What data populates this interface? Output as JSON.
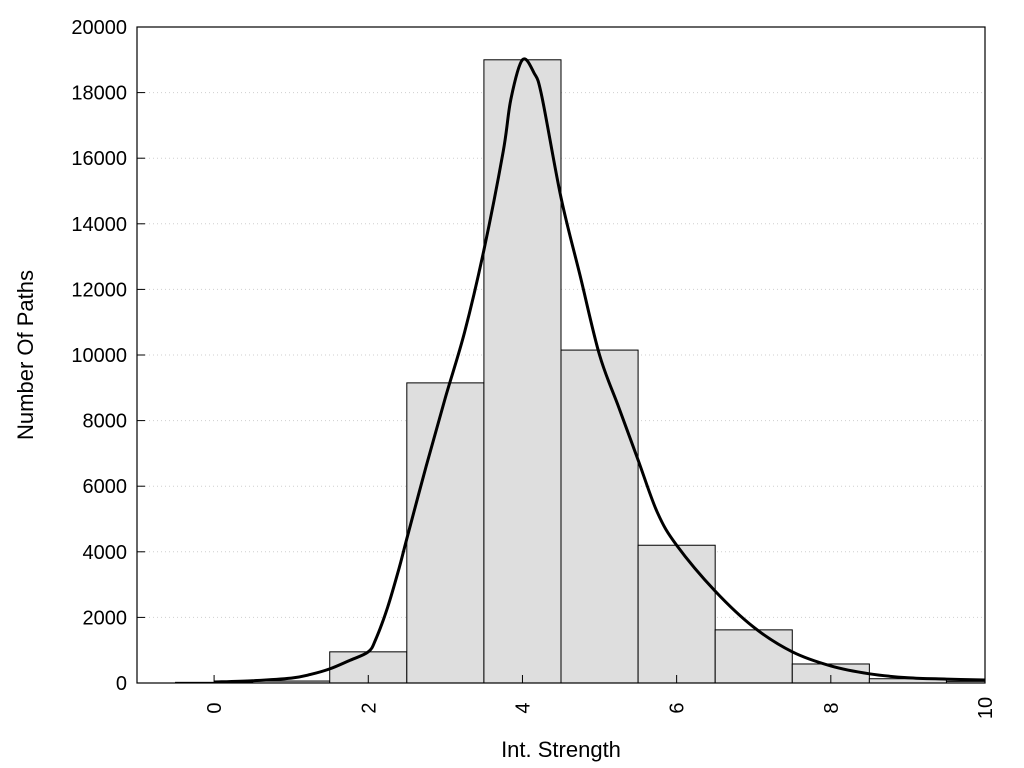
{
  "chart_data": {
    "type": "bar",
    "xlabel": "Int. Strength",
    "ylabel": "Number Of Paths",
    "xlim": [
      -1,
      10
    ],
    "ylim": [
      0,
      20000
    ],
    "x_ticks": [
      "0",
      "2",
      "4",
      "6",
      "8",
      "10"
    ],
    "y_ticks": [
      "0",
      "2000",
      "4000",
      "6000",
      "8000",
      "10000",
      "12000",
      "14000",
      "16000",
      "18000",
      "20000"
    ],
    "grid": "horizontal dotted",
    "bars": {
      "x": [
        0,
        1,
        2,
        3,
        4,
        5,
        6,
        7,
        8,
        9,
        10
      ],
      "values": [
        20,
        60,
        950,
        9150,
        19000,
        10150,
        4200,
        1620,
        580,
        130,
        50
      ],
      "color": "#dedede"
    },
    "fit_curve": {
      "x": [
        0,
        0.5,
        1,
        1.25,
        1.5,
        1.75,
        2,
        2.1,
        2.25,
        2.4,
        2.5,
        2.75,
        3,
        3.25,
        3.5,
        3.75,
        3.85,
        4,
        4.15,
        4.25,
        4.5,
        4.75,
        5,
        5.25,
        5.5,
        5.75,
        6,
        6.5,
        7,
        7.5,
        8,
        8.5,
        9,
        9.5,
        10
      ],
      "y": [
        30,
        70,
        150,
        260,
        430,
        680,
        950,
        1350,
        2300,
        3500,
        4400,
        6600,
        8700,
        10700,
        13200,
        16200,
        17800,
        19000,
        18600,
        17900,
        14800,
        12400,
        10000,
        8400,
        6800,
        5200,
        4200,
        2800,
        1700,
        950,
        520,
        280,
        160,
        120,
        90
      ],
      "color": "#000000"
    },
    "colors": {
      "bar_fill": "#dedede",
      "bar_stroke": "#000000",
      "curve": "#000000"
    }
  }
}
